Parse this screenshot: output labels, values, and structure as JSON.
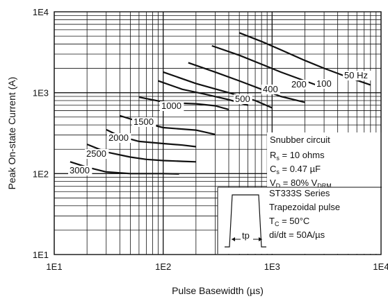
{
  "chart_data": {
    "type": "line",
    "xlabel": "Pulse Basewidth (µs)",
    "ylabel": "Peak On-state Current (A)",
    "xscale": "log",
    "yscale": "log",
    "xlim": [
      10,
      10000
    ],
    "ylim": [
      10,
      10000
    ],
    "grid": true,
    "x_tick_labels": [
      "1E1",
      "1E2",
      "1E3",
      "1E4"
    ],
    "y_tick_labels": [
      "1E1",
      "1E2",
      "1E3",
      "1E4"
    ],
    "series": [
      {
        "name": "50 Hz",
        "x": [
          500,
          800,
          1200,
          2000,
          3000,
          5000,
          8000
        ],
        "y": [
          5500,
          4300,
          3400,
          2500,
          2000,
          1550,
          1250
        ]
      },
      {
        "name": "100",
        "x": [
          280,
          500,
          800,
          1200,
          2000,
          3000
        ],
        "y": [
          3800,
          2900,
          2250,
          1800,
          1400,
          1150
        ]
      },
      {
        "name": "200",
        "x": [
          170,
          300,
          500,
          800,
          1200,
          2000
        ],
        "y": [
          2350,
          1800,
          1400,
          1100,
          900,
          760
        ]
      },
      {
        "name": "400",
        "x": [
          100,
          200,
          400,
          700,
          1000
        ],
        "y": [
          1800,
          1300,
          1000,
          800,
          650
        ]
      },
      {
        "name": "500",
        "x": [
          90,
          150,
          250,
          400,
          600
        ],
        "y": [
          1400,
          1100,
          950,
          820,
          700
        ]
      },
      {
        "name": "1000",
        "x": [
          60,
          100,
          150,
          200,
          300,
          400
        ],
        "y": [
          880,
          770,
          740,
          730,
          690,
          620
        ]
      },
      {
        "name": "1500",
        "x": [
          40,
          60,
          100,
          150,
          200,
          300
        ],
        "y": [
          520,
          440,
          370,
          355,
          345,
          305
        ]
      },
      {
        "name": "2000",
        "x": [
          30,
          40,
          60,
          100,
          150,
          200
        ],
        "y": [
          350,
          290,
          250,
          235,
          225,
          215
        ]
      },
      {
        "name": "2500",
        "x": [
          20,
          30,
          50,
          70,
          100,
          150,
          200
        ],
        "y": [
          230,
          185,
          160,
          150,
          145,
          142,
          140
        ]
      },
      {
        "name": "3000",
        "x": [
          14,
          20,
          30,
          50,
          70,
          100,
          140
        ],
        "y": [
          140,
          120,
          105,
          100,
          100,
          100,
          99
        ]
      }
    ],
    "legend_notes": {
      "snubber_title": "Snubber circuit",
      "rs": "R",
      "rs_sub": "s",
      "rs_val": " = 10 ohms",
      "cs": "C",
      "cs_sub": "s",
      "cs_val": " = 0.47 µF",
      "vd": "V",
      "vd_sub": "D",
      "vd_mid": " = 80% V",
      "vd_sub2": "DRM",
      "series_name": "ST333S Series",
      "pulse_shape": "Trapezoidal pulse",
      "tc": "T",
      "tc_sub": "C",
      "tc_val": " = 50°C",
      "didt": "di/dt = 50A/µs",
      "tp": "tp"
    }
  }
}
